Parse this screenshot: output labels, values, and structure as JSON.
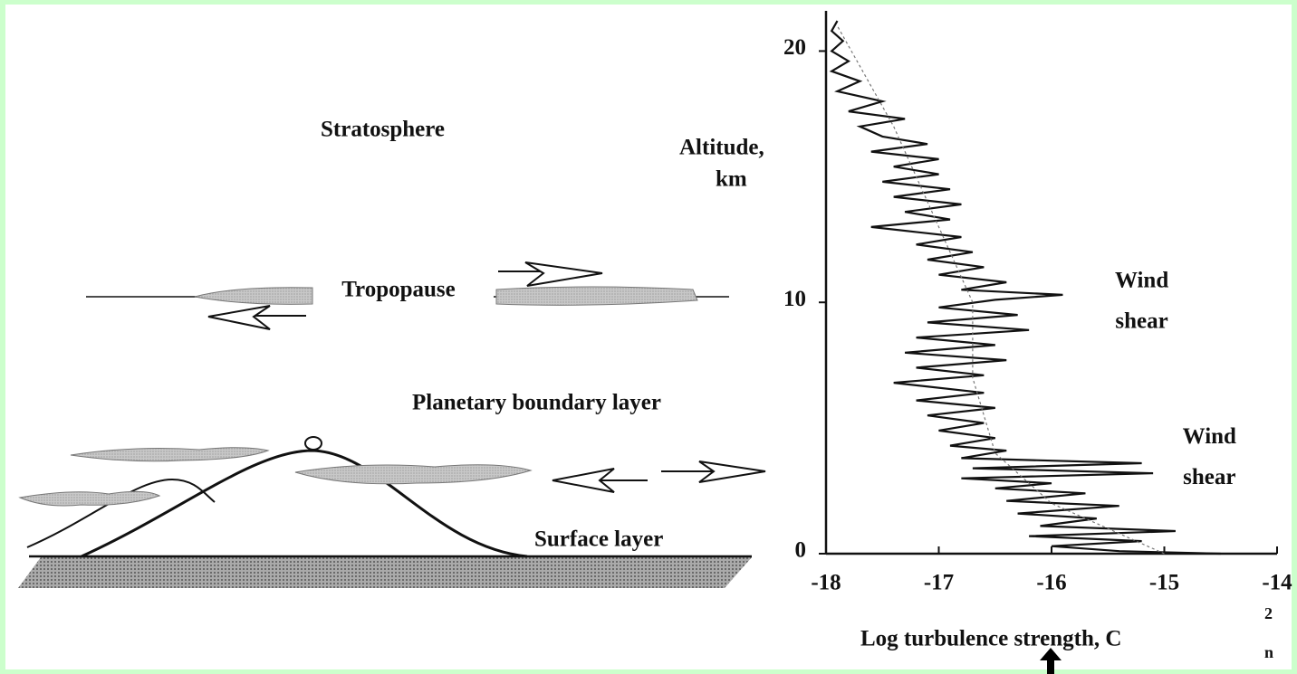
{
  "diagram": {
    "labels": {
      "stratosphere": "Stratosphere",
      "tropopause": "Tropopause",
      "boundary_layer": "Planetary boundary layer",
      "surface_layer": "Surface layer"
    }
  },
  "chart_data": {
    "type": "line",
    "y_label": [
      "Altitude,",
      "km"
    ],
    "x_label": "Log turbulence strength, C",
    "x_label_superscript": "2",
    "x_label_subscript": "n",
    "annotations": [
      {
        "lines": [
          "Wind",
          "shear"
        ],
        "at": [
          -15.2,
          10.8
        ]
      },
      {
        "lines": [
          "Wind",
          "shear"
        ],
        "at": [
          -14.6,
          4.6
        ]
      }
    ],
    "xlim": [
      -18,
      -14
    ],
    "ylim": [
      0,
      21.6
    ],
    "xticks": [
      -18,
      -17,
      -16,
      -15,
      -14
    ],
    "yticks": [
      0,
      10,
      20
    ],
    "series": [
      {
        "color": "#111111",
        "dashed": false,
        "x": [
          -14.5,
          -15.4,
          -16.0,
          -15.2,
          -16.2,
          -14.9,
          -16.1,
          -15.6,
          -16.3,
          -15.4,
          -16.4,
          -15.7,
          -16.5,
          -16.0,
          -16.8,
          -15.1,
          -16.7,
          -15.2,
          -16.8,
          -16.4,
          -16.9,
          -16.5,
          -17.0,
          -16.6,
          -17.1,
          -16.5,
          -17.2,
          -16.6,
          -17.4,
          -16.6,
          -17.2,
          -16.4,
          -17.3,
          -16.5,
          -17.2,
          -16.2,
          -17.1,
          -16.3,
          -17.0,
          -16.5,
          -15.9,
          -16.8,
          -16.4,
          -17.0,
          -16.6,
          -17.1,
          -16.7,
          -17.2,
          -16.8,
          -17.6,
          -16.9,
          -17.3,
          -16.8,
          -17.4,
          -16.9,
          -17.5,
          -17.0,
          -17.4,
          -17.0,
          -17.6,
          -17.1,
          -17.5,
          -17.7,
          -17.3,
          -17.8,
          -17.5,
          -17.9,
          -17.7,
          -17.95,
          -17.8,
          -17.95,
          -17.85,
          -17.95,
          -17.9
        ],
        "y": [
          0,
          0.1,
          0.3,
          0.5,
          0.7,
          0.9,
          1.1,
          1.4,
          1.6,
          1.9,
          2.1,
          2.4,
          2.6,
          2.8,
          3.0,
          3.2,
          3.4,
          3.6,
          3.8,
          4.1,
          4.3,
          4.6,
          4.9,
          5.2,
          5.5,
          5.8,
          6.1,
          6.4,
          6.8,
          7.1,
          7.4,
          7.7,
          8.0,
          8.3,
          8.6,
          8.9,
          9.2,
          9.5,
          9.8,
          10.1,
          10.3,
          10.5,
          10.8,
          11.1,
          11.4,
          11.7,
          12.0,
          12.3,
          12.6,
          13.0,
          13.3,
          13.6,
          13.9,
          14.2,
          14.5,
          14.8,
          15.1,
          15.4,
          15.7,
          16.0,
          16.3,
          16.6,
          17.0,
          17.3,
          17.6,
          18.0,
          18.4,
          18.8,
          19.2,
          19.6,
          20.0,
          20.4,
          20.8,
          21.2
        ]
      },
      {
        "color": "#777777",
        "dashed": true,
        "x": [
          -15.0,
          -16.0,
          -16.5,
          -16.7,
          -16.7,
          -17.0,
          -17.4,
          -17.9
        ],
        "y": [
          0,
          2,
          4,
          7,
          10,
          13,
          17,
          21
        ]
      }
    ]
  }
}
